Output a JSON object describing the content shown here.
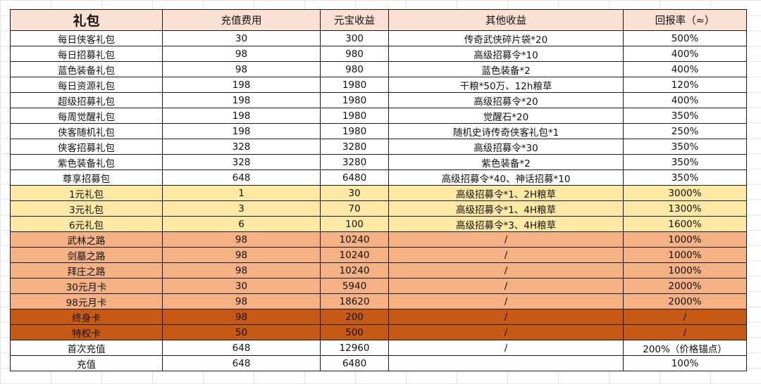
{
  "headers": [
    "礼包",
    "充值费用",
    "元宝收益",
    "其他收益",
    "回报率（≈）"
  ],
  "rows": [
    {
      "group": "white",
      "cells": [
        "每日侠客礼包",
        "30",
        "300",
        "传奇武侠碎片袋*20",
        "500%"
      ]
    },
    {
      "group": "white",
      "cells": [
        "每日招募礼包",
        "98",
        "980",
        "高级招募令*10",
        "400%"
      ]
    },
    {
      "group": "white",
      "cells": [
        "蓝色装备礼包",
        "98",
        "980",
        "蓝色装备*2",
        "400%"
      ]
    },
    {
      "group": "white",
      "cells": [
        "每日资源礼包",
        "198",
        "1980",
        "干粮*50万、12h粮草",
        "120%"
      ]
    },
    {
      "group": "white",
      "cells": [
        "超级招募礼包",
        "198",
        "1980",
        "高级招募令*20",
        "400%"
      ]
    },
    {
      "group": "white",
      "cells": [
        "每周觉醒礼包",
        "198",
        "1980",
        "觉醒石*20",
        "350%"
      ]
    },
    {
      "group": "white",
      "cells": [
        "侠客随机礼包",
        "198",
        "1980",
        "随机史诗传奇侠客礼包*1",
        "250%"
      ]
    },
    {
      "group": "white",
      "cells": [
        "侠客招募礼包",
        "328",
        "3280",
        "高级招募令*30",
        "350%"
      ]
    },
    {
      "group": "white",
      "cells": [
        "紫色装备礼包",
        "328",
        "3280",
        "紫色装备*2",
        "350%"
      ]
    },
    {
      "group": "white",
      "cells": [
        "尊享招募包",
        "648",
        "6480",
        "高级招募令*40、神话招募*10",
        "350%"
      ]
    },
    {
      "group": "yellow",
      "cells": [
        "1元礼包",
        "1",
        "30",
        "高级招募令*1、2H粮草",
        "3000%"
      ]
    },
    {
      "group": "yellow",
      "cells": [
        "3元礼包",
        "3",
        "70",
        "高级招募令*1、4H粮草",
        "1300%"
      ]
    },
    {
      "group": "yellow",
      "cells": [
        "6元礼包",
        "6",
        "100",
        "高级招募令*3、4H粮草",
        "1600%"
      ]
    },
    {
      "group": "peach",
      "cells": [
        "武林之路",
        "98",
        "10240",
        "/",
        "1000%"
      ]
    },
    {
      "group": "peach",
      "cells": [
        "剑墓之路",
        "98",
        "10240",
        "/",
        "1000%"
      ]
    },
    {
      "group": "peach",
      "cells": [
        "拜庄之路",
        "98",
        "10240",
        "/",
        "1000%"
      ]
    },
    {
      "group": "peach",
      "cells": [
        "30元月卡",
        "30",
        "5940",
        "/",
        "2000%"
      ]
    },
    {
      "group": "peach",
      "cells": [
        "98元月卡",
        "98",
        "18620",
        "/",
        "2000%"
      ]
    },
    {
      "group": "rust",
      "cells": [
        "终身卡",
        "98",
        "200",
        "/",
        "/"
      ]
    },
    {
      "group": "rust",
      "cells": [
        "特权卡",
        "50",
        "500",
        "/",
        "/"
      ]
    },
    {
      "group": "white",
      "cells": [
        "首次充值",
        "648",
        "12960",
        "/",
        "200%（价格锚点）"
      ]
    },
    {
      "group": "white",
      "cells": [
        "充值",
        "648",
        "6480",
        "",
        "100%"
      ]
    }
  ]
}
